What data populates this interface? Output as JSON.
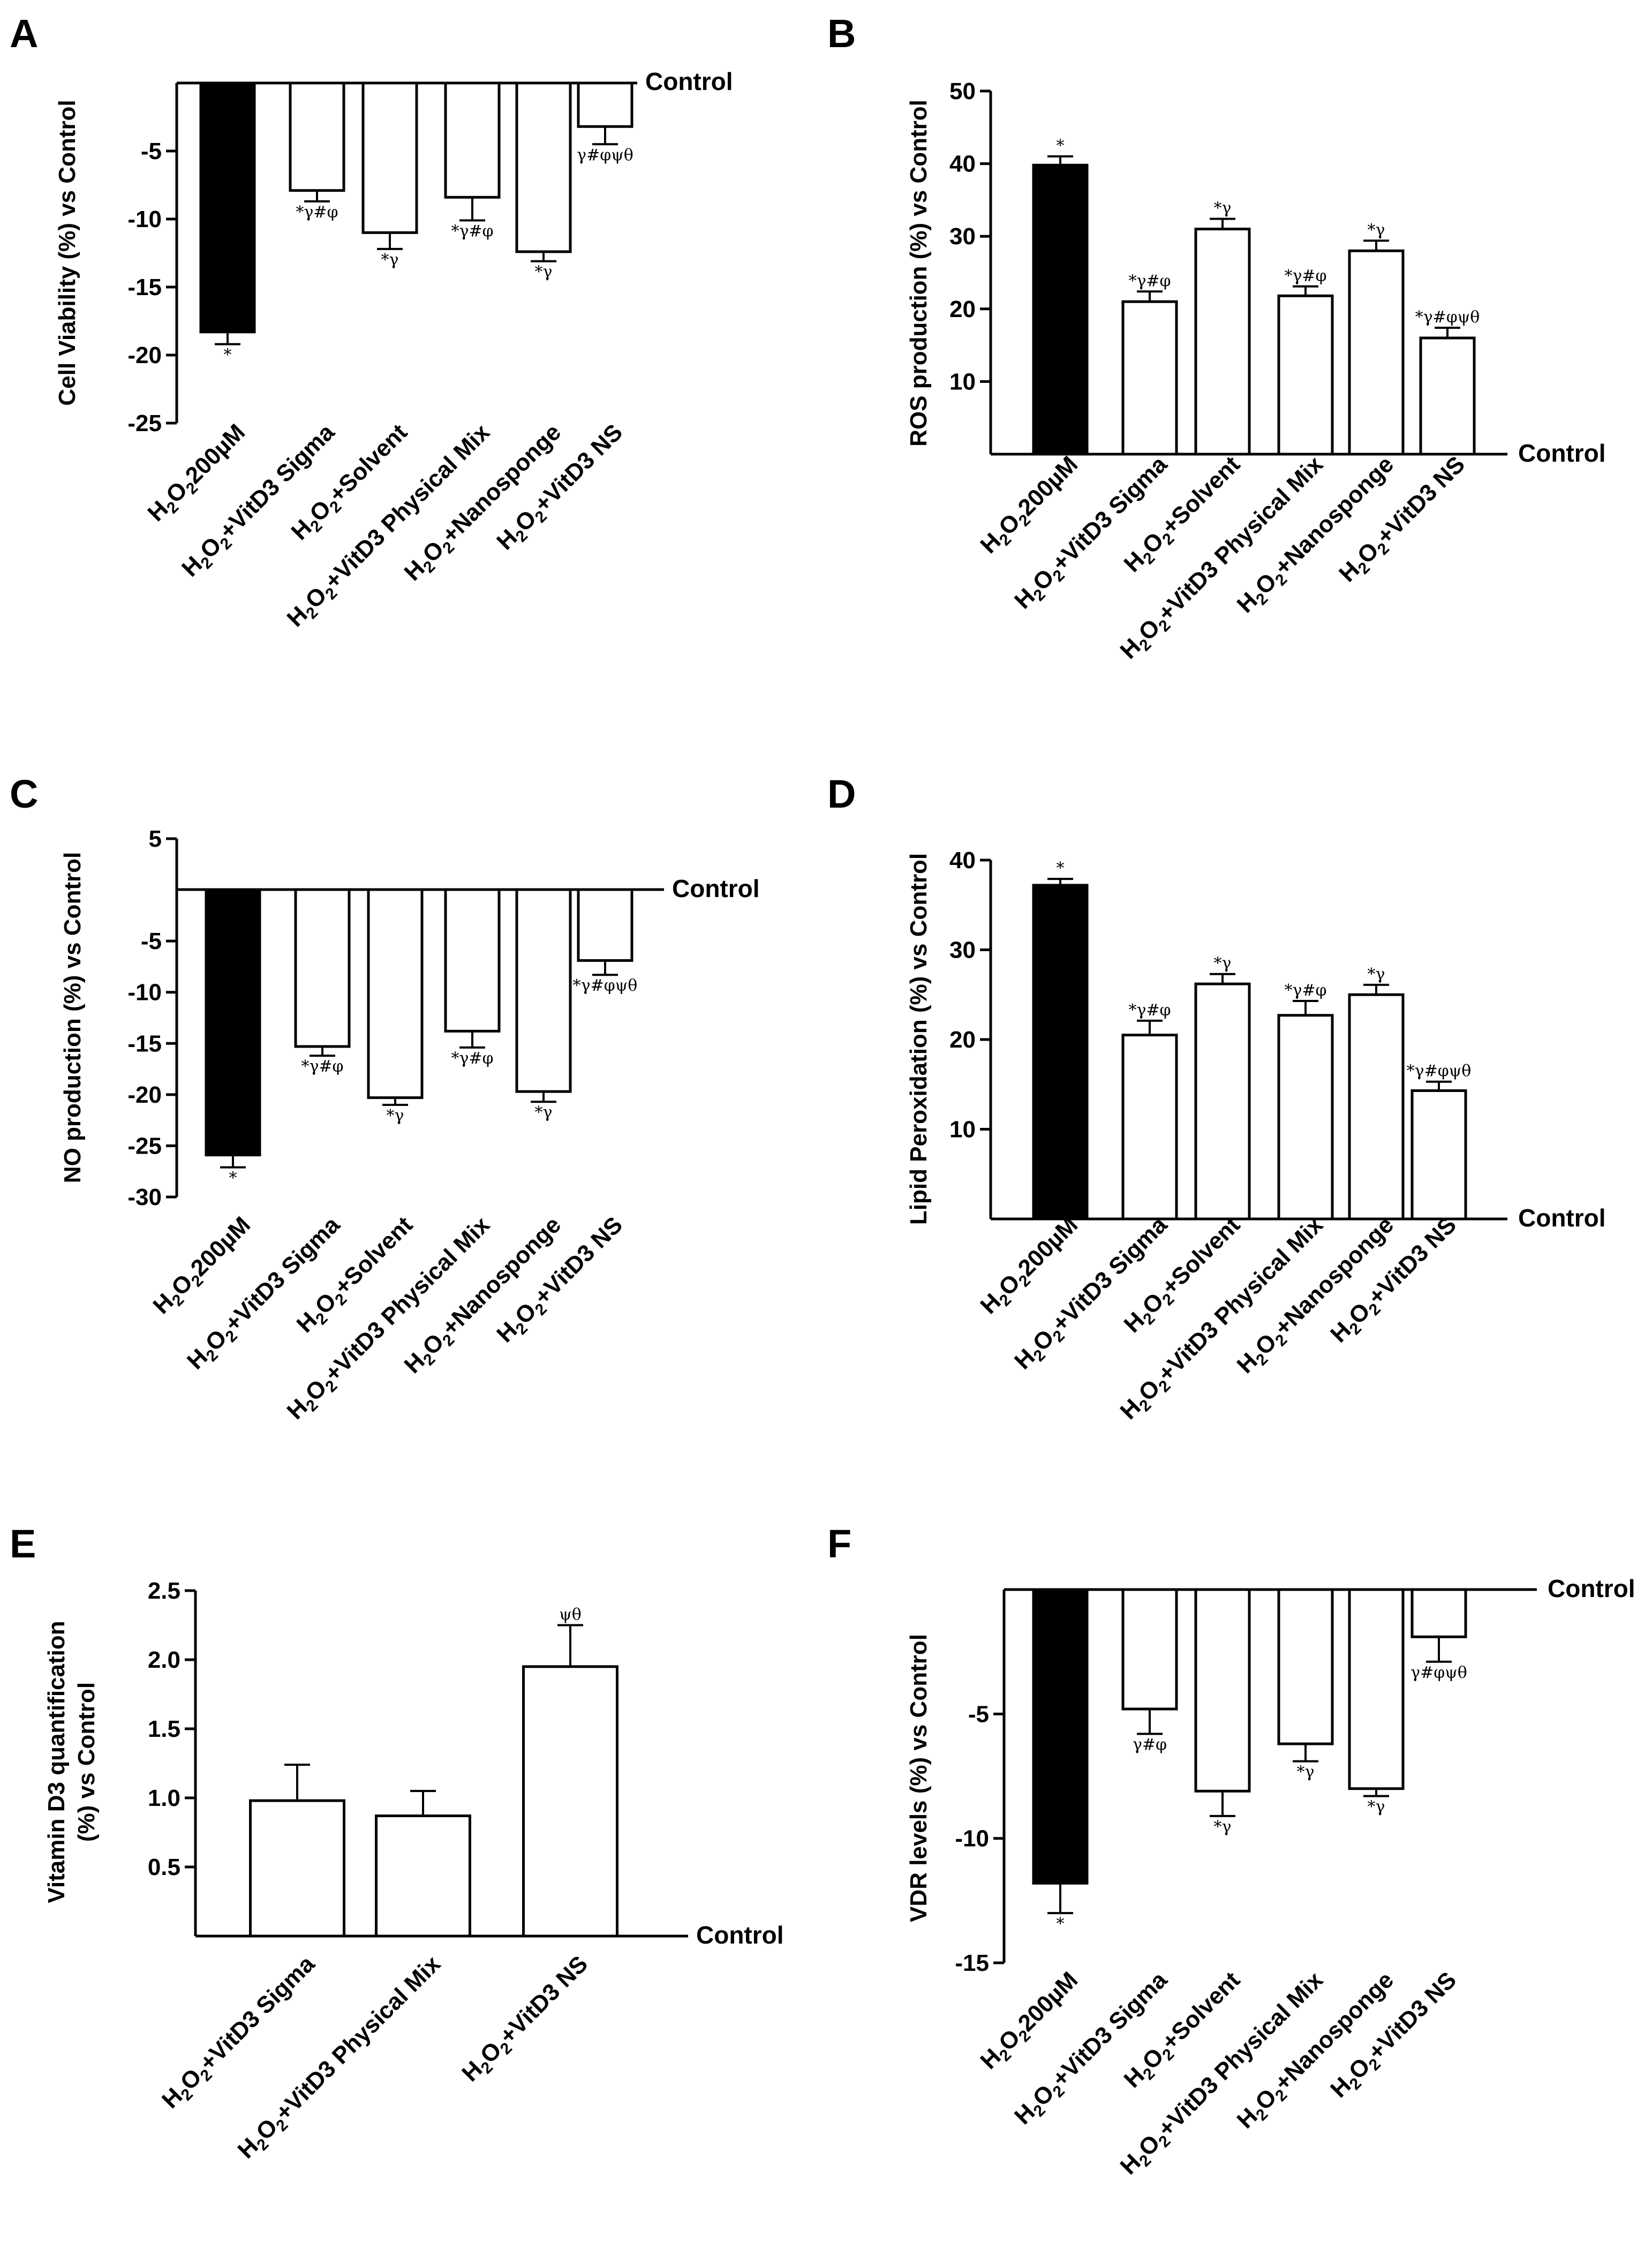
{
  "chart_data": [
    {
      "panel": "A",
      "type": "bar",
      "ylabel": "Cell Viability (%) vs Control",
      "ylim": [
        -25,
        0
      ],
      "yticks": [
        -5,
        -10,
        -15,
        -20,
        -25
      ],
      "baseline_label": "Control",
      "categories": [
        {
          "prefix": "H",
          "sub1": "2",
          "mid": "O",
          "sub2": "2",
          "suffix": "200µM"
        },
        {
          "prefix": "H",
          "sub1": "2",
          "mid": "O",
          "sub2": "2",
          "suffix": "+VitD3 Sigma"
        },
        {
          "prefix": "H",
          "sub1": "2",
          "mid": "O",
          "sub2": "2",
          "suffix": "+Solvent"
        },
        {
          "prefix": "H",
          "sub1": "2",
          "mid": "O",
          "sub2": "2",
          "suffix": "+VitD3 Physical Mix"
        },
        {
          "prefix": "H",
          "sub1": "2",
          "mid": "O",
          "sub2": "2",
          "suffix": "+Nanosponge"
        },
        {
          "prefix": "H",
          "sub1": "2",
          "mid": "O",
          "sub2": "2",
          "suffix": "+VitD3 NS"
        }
      ],
      "values": [
        -18.3,
        -7.9,
        -11.0,
        -8.4,
        -12.4,
        -3.2
      ],
      "errors": [
        0.9,
        0.8,
        1.2,
        1.7,
        0.7,
        1.3
      ],
      "fills": [
        "#000000",
        "#ffffff",
        "#ffffff",
        "#ffffff",
        "#ffffff",
        "#ffffff"
      ],
      "significance": [
        "*",
        "*γ#φ",
        "*γ",
        "*γ#φ",
        "*γ",
        "γ#φψθ"
      ]
    },
    {
      "panel": "B",
      "type": "bar",
      "ylabel": "ROS production (%) vs Control",
      "ylim": [
        0,
        50
      ],
      "yticks": [
        10,
        20,
        30,
        40,
        50
      ],
      "baseline_label": "Control",
      "categories": [
        {
          "prefix": "H",
          "sub1": "2",
          "mid": "O",
          "sub2": "2",
          "suffix": "200µM"
        },
        {
          "prefix": "H",
          "sub1": "2",
          "mid": "O",
          "sub2": "2",
          "suffix": "+VitD3 Sigma"
        },
        {
          "prefix": "H",
          "sub1": "2",
          "mid": "O",
          "sub2": "2",
          "suffix": "+Solvent"
        },
        {
          "prefix": "H",
          "sub1": "2",
          "mid": "O",
          "sub2": "2",
          "suffix": "+VitD3 Physical Mix"
        },
        {
          "prefix": "H",
          "sub1": "2",
          "mid": "O",
          "sub2": "2",
          "suffix": "+Nanosponge"
        },
        {
          "prefix": "H",
          "sub1": "2",
          "mid": "O",
          "sub2": "2",
          "suffix": "+VitD3 NS"
        }
      ],
      "values": [
        39.8,
        21.0,
        31.0,
        21.8,
        28.0,
        16.0
      ],
      "errors": [
        1.2,
        1.4,
        1.4,
        1.3,
        1.4,
        1.4
      ],
      "fills": [
        "#000000",
        "#ffffff",
        "#ffffff",
        "#ffffff",
        "#ffffff",
        "#ffffff"
      ],
      "significance": [
        "*",
        "*γ#φ",
        "*γ",
        "*γ#φ",
        "*γ",
        "*γ#φψθ"
      ]
    },
    {
      "panel": "C",
      "type": "bar",
      "ylabel": "NO production (%) vs Control",
      "ylim": [
        -30,
        5
      ],
      "yticks": [
        5,
        -5,
        -10,
        -15,
        -20,
        -25,
        -30
      ],
      "baseline_label": "Control",
      "categories": [
        {
          "prefix": "H",
          "sub1": "2",
          "mid": "O",
          "sub2": "2",
          "suffix": "200µM"
        },
        {
          "prefix": "H",
          "sub1": "2",
          "mid": "O",
          "sub2": "2",
          "suffix": "+VitD3 Sigma"
        },
        {
          "prefix": "H",
          "sub1": "2",
          "mid": "O",
          "sub2": "2",
          "suffix": "+Solvent"
        },
        {
          "prefix": "H",
          "sub1": "2",
          "mid": "O",
          "sub2": "2",
          "suffix": "+VitD3 Physical Mix"
        },
        {
          "prefix": "H",
          "sub1": "2",
          "mid": "O",
          "sub2": "2",
          "suffix": "+Nanosponge"
        },
        {
          "prefix": "H",
          "sub1": "2",
          "mid": "O",
          "sub2": "2",
          "suffix": "+VitD3 NS"
        }
      ],
      "values": [
        -25.9,
        -15.3,
        -20.3,
        -13.8,
        -19.7,
        -6.9
      ],
      "errors": [
        1.2,
        0.9,
        0.7,
        1.6,
        1.0,
        1.4
      ],
      "fills": [
        "#000000",
        "#ffffff",
        "#ffffff",
        "#ffffff",
        "#ffffff",
        "#ffffff"
      ],
      "significance": [
        "*",
        "*γ#φ",
        "*γ",
        "*γ#φ",
        "*γ",
        "*γ#φψθ"
      ]
    },
    {
      "panel": "D",
      "type": "bar",
      "ylabel": "Lipid Peroxidation (%) vs Control",
      "ylim": [
        0,
        40
      ],
      "yticks": [
        10,
        20,
        30,
        40
      ],
      "baseline_label": "Control",
      "categories": [
        {
          "prefix": "H",
          "sub1": "2",
          "mid": "O",
          "sub2": "2",
          "suffix": "200µM"
        },
        {
          "prefix": "H",
          "sub1": "2",
          "mid": "O",
          "sub2": "2",
          "suffix": "+VitD3 Sigma"
        },
        {
          "prefix": "H",
          "sub1": "2",
          "mid": "O",
          "sub2": "2",
          "suffix": "+Solvent"
        },
        {
          "prefix": "H",
          "sub1": "2",
          "mid": "O",
          "sub2": "2",
          "suffix": "+VitD3 Physical Mix"
        },
        {
          "prefix": "H",
          "sub1": "2",
          "mid": "O",
          "sub2": "2",
          "suffix": "+Nanosponge"
        },
        {
          "prefix": "H",
          "sub1": "2",
          "mid": "O",
          "sub2": "2",
          "suffix": "+VitD3 NS"
        }
      ],
      "values": [
        37.2,
        20.5,
        26.2,
        22.7,
        25.0,
        14.3
      ],
      "errors": [
        0.7,
        1.6,
        1.1,
        1.6,
        1.1,
        1.0
      ],
      "fills": [
        "#000000",
        "#ffffff",
        "#ffffff",
        "#ffffff",
        "#ffffff",
        "#ffffff"
      ],
      "significance": [
        "*",
        "*γ#φ",
        "*γ",
        "*γ#φ",
        "*γ",
        "*γ#φψθ"
      ]
    },
    {
      "panel": "E",
      "type": "bar",
      "ylabel": "Vitamin D3 quantification",
      "ylabel2": "(%) vs Control",
      "ylim": [
        0,
        2.5
      ],
      "yticks": [
        "0.5",
        "1.0",
        "1.5",
        "2.0",
        "2.5"
      ],
      "baseline_label": "Control",
      "categories": [
        {
          "prefix": "H",
          "sub1": "2",
          "mid": "O",
          "sub2": "2",
          "suffix": "+VitD3 Sigma"
        },
        {
          "prefix": "H",
          "sub1": "2",
          "mid": "O",
          "sub2": "2",
          "suffix": "+VitD3 Physical Mix"
        },
        {
          "prefix": "H",
          "sub1": "2",
          "mid": "O",
          "sub2": "2",
          "suffix": "+VitD3 NS"
        }
      ],
      "values": [
        0.98,
        0.87,
        1.95
      ],
      "errors": [
        0.26,
        0.18,
        0.3
      ],
      "fills": [
        "#ffffff",
        "#ffffff",
        "#ffffff"
      ],
      "significance": [
        "",
        "",
        "ψθ"
      ]
    },
    {
      "panel": "F",
      "type": "bar",
      "ylabel": "VDR levels (%) vs Control",
      "ylim": [
        -15,
        0
      ],
      "yticks": [
        -5,
        -10,
        -15
      ],
      "baseline_label": "Control",
      "categories": [
        {
          "prefix": "H",
          "sub1": "2",
          "mid": "O",
          "sub2": "2",
          "suffix": "200µM"
        },
        {
          "prefix": "H",
          "sub1": "2",
          "mid": "O",
          "sub2": "2",
          "suffix": "+VitD3 Sigma"
        },
        {
          "prefix": "H",
          "sub1": "2",
          "mid": "O",
          "sub2": "2",
          "suffix": "+Solvent"
        },
        {
          "prefix": "H",
          "sub1": "2",
          "mid": "O",
          "sub2": "2",
          "suffix": "+VitD3 Physical Mix"
        },
        {
          "prefix": "H",
          "sub1": "2",
          "mid": "O",
          "sub2": "2",
          "suffix": "+Nanosponge"
        },
        {
          "prefix": "H",
          "sub1": "2",
          "mid": "O",
          "sub2": "2",
          "suffix": "+VitD3 NS"
        }
      ],
      "values": [
        -11.8,
        -4.8,
        -8.1,
        -6.2,
        -8.0,
        -1.9
      ],
      "errors": [
        1.2,
        1.0,
        1.0,
        0.7,
        0.3,
        1.0
      ],
      "fills": [
        "#000000",
        "#ffffff",
        "#ffffff",
        "#ffffff",
        "#ffffff",
        "#ffffff"
      ],
      "significance": [
        "*",
        "γ#φ",
        "*γ",
        "*γ",
        "*γ",
        "γ#φψθ"
      ]
    }
  ]
}
